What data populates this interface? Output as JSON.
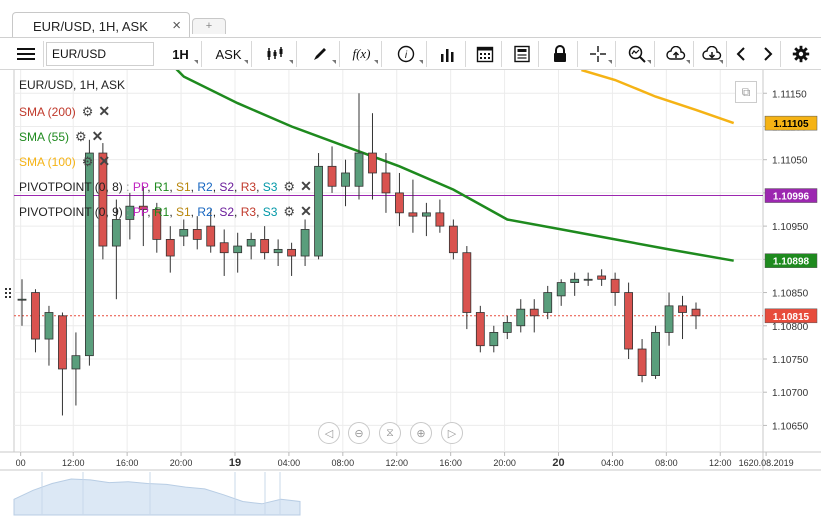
{
  "tab": {
    "title": "EUR/USD, 1H, ASK",
    "close": "×",
    "add": "+"
  },
  "toolbar": {
    "menu_icon": "hamburger-icon",
    "symbol": "EUR/USD",
    "period": "1H",
    "offer_side": "ASK",
    "icons": [
      "chart-type-icon",
      "pen-draw-icon",
      "function-icon",
      "info-icon",
      "volume-bars-icon",
      "calendar-icon",
      "news-icon",
      "lock-icon",
      "crosshair-icon",
      "zoom-icon",
      "upload-icon",
      "download-icon",
      "chevron-left-icon",
      "chevron-right-icon",
      "gear-icon"
    ],
    "fx_label": "f(x)"
  },
  "chart_title": "EUR/USD, 1H, ASK",
  "legend": {
    "sma200": "SMA (200)",
    "sma55": "SMA (55)",
    "sma100": "SMA (100)",
    "pivot1": {
      "name": "PIVOTPOINT (0, 8)",
      "levels": [
        "PP",
        "R1",
        "S1",
        "R2",
        "S2",
        "R3",
        "S3"
      ]
    },
    "pivot2": {
      "name": "PIVOTPOINT (0, 9)",
      "levels": [
        "PP",
        "R1",
        "S1",
        "R2",
        "S2",
        "R3",
        "S3"
      ]
    }
  },
  "colors": {
    "bull": "#5a9e7c",
    "bear": "#d9534f",
    "sma200": "#c0392b",
    "sma55": "#1e8a1e",
    "sma100": "#f5b315",
    "pivot_line": "#9c27b0",
    "pp": "#c022c0",
    "r1": "#1e8a1e",
    "s1": "#b8860b",
    "r2": "#1565c0",
    "s2": "#6a1b9a",
    "r3": "#c0392b",
    "s3": "#0097a7",
    "price_tag": "#e74c3c"
  },
  "price_labels": {
    "sma100_value": "1.11105",
    "pivot_value": "1.10996",
    "sma55_value": "1.10898",
    "current_price": "1.10815"
  },
  "navigation_icons": [
    "nav-left-icon",
    "zoom-out-icon",
    "fit-icon",
    "zoom-in-icon",
    "nav-right-icon"
  ],
  "chart_data": {
    "type": "candlestick",
    "title": "EUR/USD, 1H, ASK",
    "ylim": [
      1.1061,
      1.11185
    ],
    "y_ticks": [
      "1.11150",
      "1.11100",
      "1.11050",
      "1.11000",
      "1.10950",
      "1.10900",
      "1.10850",
      "1.10800",
      "1.10750",
      "1.10700",
      "1.10650"
    ],
    "x_ticks": [
      {
        "label": "00",
        "bold": false,
        "index": -0.1
      },
      {
        "label": "12:00",
        "bold": false,
        "index": 3.8
      },
      {
        "label": "16:00",
        "bold": false,
        "index": 7.8
      },
      {
        "label": "20:00",
        "bold": false,
        "index": 11.8
      },
      {
        "label": "19",
        "bold": true,
        "index": 15.8
      },
      {
        "label": "04:00",
        "bold": false,
        "index": 19.8
      },
      {
        "label": "08:00",
        "bold": false,
        "index": 23.8
      },
      {
        "label": "12:00",
        "bold": false,
        "index": 27.8
      },
      {
        "label": "16:00",
        "bold": false,
        "index": 31.8
      },
      {
        "label": "20:00",
        "bold": false,
        "index": 35.8
      },
      {
        "label": "20",
        "bold": true,
        "index": 39.8
      },
      {
        "label": "04:00",
        "bold": false,
        "index": 43.8
      },
      {
        "label": "08:00",
        "bold": false,
        "index": 47.8
      },
      {
        "label": "12:00",
        "bold": false,
        "index": 51.8
      },
      {
        "label": "1620.08.2019",
        "bold": false,
        "index": 55.2
      }
    ],
    "candles": [
      {
        "o": 1.1084,
        "h": 1.1087,
        "l": 1.108,
        "c": 1.1084
      },
      {
        "o": 1.1085,
        "h": 1.10855,
        "l": 1.1076,
        "c": 1.1078
      },
      {
        "o": 1.1078,
        "h": 1.1083,
        "l": 1.1074,
        "c": 1.1082
      },
      {
        "o": 1.10815,
        "h": 1.1082,
        "l": 1.10665,
        "c": 1.10735
      },
      {
        "o": 1.10735,
        "h": 1.1079,
        "l": 1.1068,
        "c": 1.10755
      },
      {
        "o": 1.10755,
        "h": 1.1108,
        "l": 1.1074,
        "c": 1.1106
      },
      {
        "o": 1.1106,
        "h": 1.11075,
        "l": 1.109,
        "c": 1.1092
      },
      {
        "o": 1.1092,
        "h": 1.1099,
        "l": 1.1084,
        "c": 1.1096
      },
      {
        "o": 1.1096,
        "h": 1.11,
        "l": 1.1093,
        "c": 1.1098
      },
      {
        "o": 1.1098,
        "h": 1.1101,
        "l": 1.1092,
        "c": 1.10975
      },
      {
        "o": 1.10975,
        "h": 1.10985,
        "l": 1.1091,
        "c": 1.1093
      },
      {
        "o": 1.1093,
        "h": 1.1095,
        "l": 1.1088,
        "c": 1.10905
      },
      {
        "o": 1.10935,
        "h": 1.1096,
        "l": 1.1092,
        "c": 1.10945
      },
      {
        "o": 1.10945,
        "h": 1.10965,
        "l": 1.10915,
        "c": 1.1093
      },
      {
        "o": 1.1095,
        "h": 1.10975,
        "l": 1.1091,
        "c": 1.1092
      },
      {
        "o": 1.10925,
        "h": 1.10945,
        "l": 1.10875,
        "c": 1.1091
      },
      {
        "o": 1.1091,
        "h": 1.1094,
        "l": 1.1088,
        "c": 1.1092
      },
      {
        "o": 1.1092,
        "h": 1.1094,
        "l": 1.109,
        "c": 1.1093
      },
      {
        "o": 1.1093,
        "h": 1.1095,
        "l": 1.109,
        "c": 1.1091
      },
      {
        "o": 1.1091,
        "h": 1.1093,
        "l": 1.1089,
        "c": 1.10915
      },
      {
        "o": 1.10915,
        "h": 1.10925,
        "l": 1.10875,
        "c": 1.10905
      },
      {
        "o": 1.10905,
        "h": 1.1096,
        "l": 1.1089,
        "c": 1.10945
      },
      {
        "o": 1.10905,
        "h": 1.1106,
        "l": 1.109,
        "c": 1.1104
      },
      {
        "o": 1.1104,
        "h": 1.1107,
        "l": 1.11,
        "c": 1.1101
      },
      {
        "o": 1.1101,
        "h": 1.1105,
        "l": 1.1098,
        "c": 1.1103
      },
      {
        "o": 1.1101,
        "h": 1.1115,
        "l": 1.1099,
        "c": 1.1106
      },
      {
        "o": 1.1106,
        "h": 1.1112,
        "l": 1.1099,
        "c": 1.1103
      },
      {
        "o": 1.1103,
        "h": 1.1106,
        "l": 1.1097,
        "c": 1.11
      },
      {
        "o": 1.11,
        "h": 1.1103,
        "l": 1.1095,
        "c": 1.1097
      },
      {
        "o": 1.1097,
        "h": 1.1102,
        "l": 1.1094,
        "c": 1.10965
      },
      {
        "o": 1.10965,
        "h": 1.10985,
        "l": 1.10935,
        "c": 1.1097
      },
      {
        "o": 1.1097,
        "h": 1.1099,
        "l": 1.1094,
        "c": 1.1095
      },
      {
        "o": 1.1095,
        "h": 1.1096,
        "l": 1.109,
        "c": 1.1091
      },
      {
        "o": 1.1091,
        "h": 1.1092,
        "l": 1.10795,
        "c": 1.1082
      },
      {
        "o": 1.1082,
        "h": 1.1083,
        "l": 1.1076,
        "c": 1.1077
      },
      {
        "o": 1.1077,
        "h": 1.108,
        "l": 1.1076,
        "c": 1.1079
      },
      {
        "o": 1.1079,
        "h": 1.10815,
        "l": 1.1078,
        "c": 1.10805
      },
      {
        "o": 1.108,
        "h": 1.1084,
        "l": 1.1079,
        "c": 1.10825
      },
      {
        "o": 1.10825,
        "h": 1.1084,
        "l": 1.1079,
        "c": 1.10815
      },
      {
        "o": 1.1082,
        "h": 1.1086,
        "l": 1.1081,
        "c": 1.1085
      },
      {
        "o": 1.10845,
        "h": 1.1087,
        "l": 1.1083,
        "c": 1.10865
      },
      {
        "o": 1.10865,
        "h": 1.1088,
        "l": 1.10845,
        "c": 1.1087
      },
      {
        "o": 1.1087,
        "h": 1.1088,
        "l": 1.1086,
        "c": 1.1087
      },
      {
        "o": 1.10875,
        "h": 1.10885,
        "l": 1.1086,
        "c": 1.1087
      },
      {
        "o": 1.1087,
        "h": 1.1088,
        "l": 1.1083,
        "c": 1.1085
      },
      {
        "o": 1.1085,
        "h": 1.10865,
        "l": 1.1075,
        "c": 1.10765
      },
      {
        "o": 1.10765,
        "h": 1.1078,
        "l": 1.10715,
        "c": 1.10725
      },
      {
        "o": 1.10725,
        "h": 1.108,
        "l": 1.1072,
        "c": 1.1079
      },
      {
        "o": 1.1079,
        "h": 1.1085,
        "l": 1.1077,
        "c": 1.1083
      },
      {
        "o": 1.1083,
        "h": 1.10845,
        "l": 1.1078,
        "c": 1.1082
      },
      {
        "o": 1.10825,
        "h": 1.10835,
        "l": 1.10795,
        "c": 1.10815
      }
    ],
    "sma55": [
      {
        "i": 10.3,
        "v": 1.1121
      },
      {
        "i": 12,
        "v": 1.11175
      },
      {
        "i": 16,
        "v": 1.11135
      },
      {
        "i": 20,
        "v": 1.111
      },
      {
        "i": 24,
        "v": 1.1107
      },
      {
        "i": 28,
        "v": 1.1104
      },
      {
        "i": 32,
        "v": 1.11005
      },
      {
        "i": 36,
        "v": 1.1096
      },
      {
        "i": 40,
        "v": 1.10945
      },
      {
        "i": 44,
        "v": 1.1093
      },
      {
        "i": 48,
        "v": 1.10915
      },
      {
        "i": 52.8,
        "v": 1.10898
      }
    ],
    "sma100": [
      {
        "i": 41.5,
        "v": 1.11185
      },
      {
        "i": 44,
        "v": 1.1117
      },
      {
        "i": 47,
        "v": 1.11145
      },
      {
        "i": 50,
        "v": 1.11125
      },
      {
        "i": 52.8,
        "v": 1.11105
      }
    ],
    "pivot_level": 1.10996,
    "current_price": 1.10815,
    "navigator": {
      "type": "area",
      "values": [
        0.35,
        0.55,
        0.7,
        0.8,
        0.78,
        0.72,
        0.74,
        0.7,
        0.68,
        0.62,
        0.58,
        0.45,
        0.3,
        0.25,
        0.35,
        0.3
      ]
    }
  }
}
